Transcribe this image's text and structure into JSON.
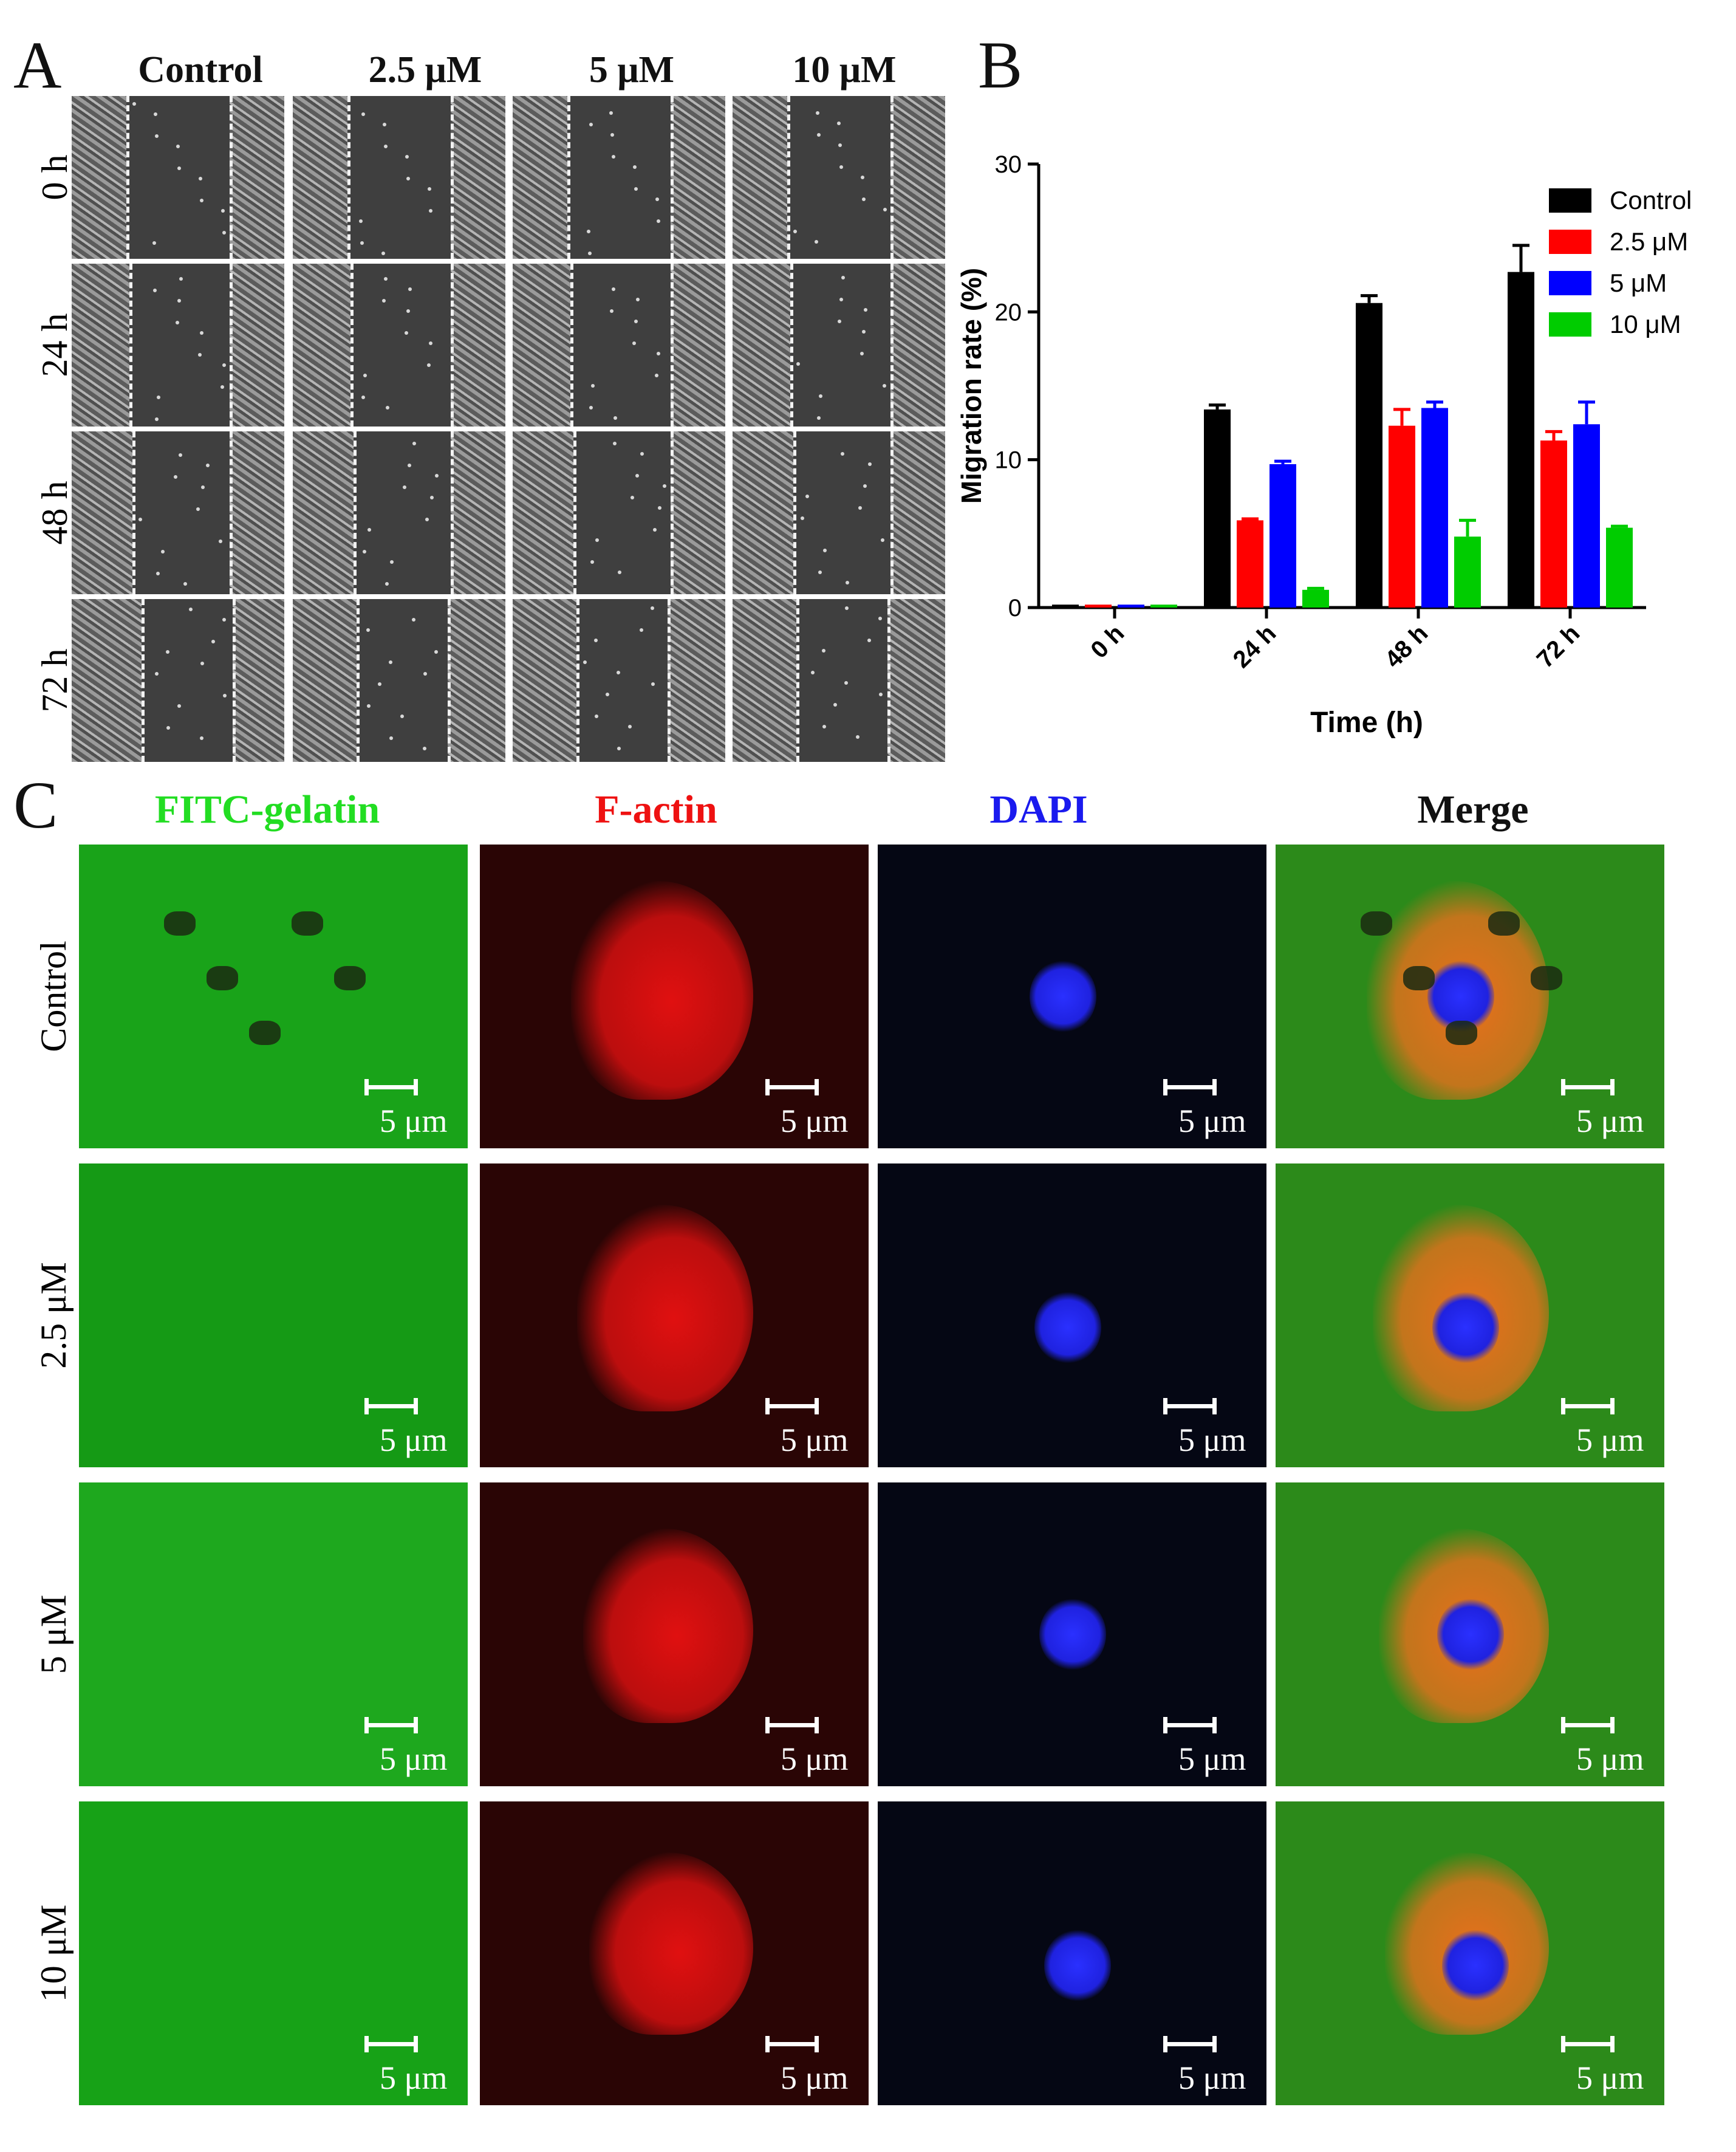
{
  "panel_labels": {
    "a": "A",
    "b": "B",
    "c": "C"
  },
  "panel_a": {
    "columns": [
      "Control",
      "2.5 μM",
      "5 μM",
      "10 μM"
    ],
    "rows": [
      "0 h",
      "24 h",
      "48 h",
      "72 h"
    ]
  },
  "chart_data": {
    "type": "bar",
    "categories": [
      "0 h",
      "24 h",
      "48 h",
      "72 h"
    ],
    "xlabel": "Time (h)",
    "ylabel": "Migration rate (%)",
    "ylim": [
      0,
      30
    ],
    "yticks": [
      0,
      10,
      20,
      30
    ],
    "legend_position": "top-right",
    "series": [
      {
        "name": "Control",
        "color": "#000000",
        "values": [
          0.2,
          13.4,
          20.6,
          22.7
        ],
        "errors": [
          0,
          0.3,
          0.5,
          1.8
        ]
      },
      {
        "name": "2.5 μM",
        "color": "#ff0000",
        "values": [
          0.2,
          5.9,
          12.3,
          11.3
        ],
        "errors": [
          0,
          0.1,
          1.1,
          0.6
        ]
      },
      {
        "name": "5 μM",
        "color": "#0000ff",
        "values": [
          0.2,
          9.7,
          13.5,
          12.4
        ],
        "errors": [
          0,
          0.2,
          0.4,
          1.5
        ]
      },
      {
        "name": "10 μM",
        "color": "#00cc00",
        "values": [
          0.2,
          1.2,
          4.8,
          5.4
        ],
        "errors": [
          0,
          0.1,
          1.1,
          0.1
        ]
      }
    ]
  },
  "panel_c": {
    "columns": [
      {
        "label": "FITC-gelatin",
        "color": "#22dd22"
      },
      {
        "label": "F-actin",
        "color": "#ee1111"
      },
      {
        "label": "DAPI",
        "color": "#1a1aee"
      },
      {
        "label": "Merge",
        "color": "#111111"
      }
    ],
    "rows": [
      "Control",
      "2.5 μM",
      "5 μM",
      "10 μM"
    ],
    "scale_label": "5 μm"
  }
}
